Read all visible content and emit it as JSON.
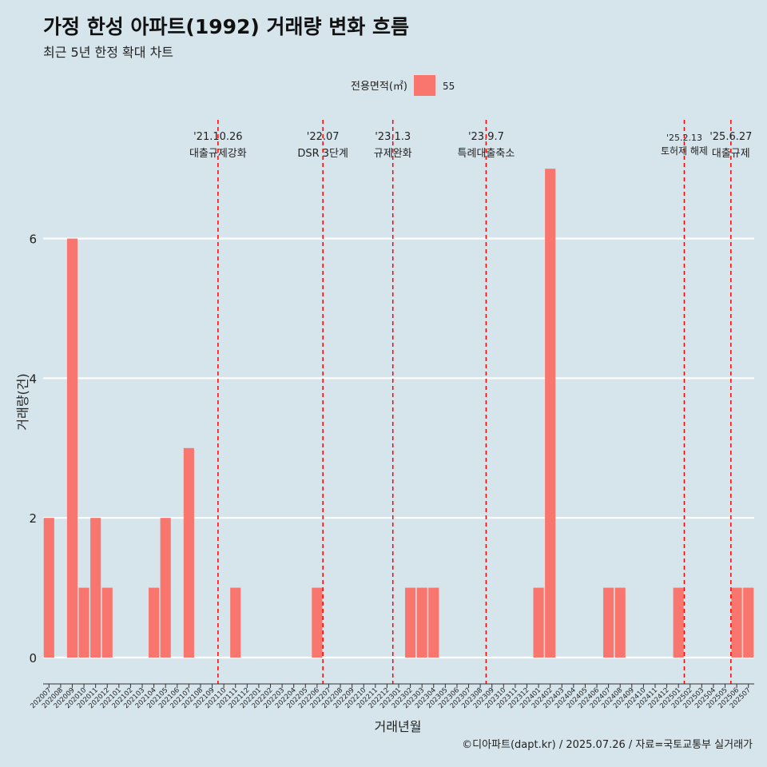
{
  "chart_data": {
    "type": "bar",
    "title": "가정 한성 아파트(1992) 거래량 변화 흐름",
    "subtitle": "최근 5년 한정 확대 차트",
    "xlabel": "거래년월",
    "ylabel": "거래량(건)",
    "legend_title": "전용면적(㎡)",
    "legend_position": "top",
    "caption": "©디아파트(dapt.kr) / 2025.07.26 / 자료=국토교통부 실거래가",
    "ylim": [
      0,
      7
    ],
    "yticks": [
      0,
      2,
      4,
      6
    ],
    "grid": true,
    "categories": [
      "202007",
      "202008",
      "202009",
      "202010",
      "202011",
      "202012",
      "202101",
      "202102",
      "202103",
      "202104",
      "202105",
      "202106",
      "202107",
      "202108",
      "202109",
      "202110",
      "202111",
      "202112",
      "202201",
      "202202",
      "202203",
      "202204",
      "202205",
      "202206",
      "202207",
      "202208",
      "202209",
      "202210",
      "202211",
      "202212",
      "202301",
      "202302",
      "202303",
      "202304",
      "202305",
      "202306",
      "202307",
      "202308",
      "202309",
      "202310",
      "202311",
      "202312",
      "202401",
      "202402",
      "202403",
      "202404",
      "202405",
      "202406",
      "202407",
      "202408",
      "202409",
      "202410",
      "202411",
      "202412",
      "202501",
      "202502",
      "202503",
      "202504",
      "202505",
      "202506",
      "202507"
    ],
    "series": [
      {
        "name": "55",
        "color": "#f8766d",
        "values": [
          2,
          0,
          6,
          1,
          2,
          1,
          0,
          0,
          0,
          1,
          2,
          0,
          3,
          0,
          0,
          0,
          1,
          0,
          0,
          0,
          0,
          0,
          0,
          1,
          0,
          0,
          0,
          0,
          0,
          0,
          0,
          1,
          1,
          1,
          0,
          0,
          0,
          0,
          0,
          0,
          0,
          0,
          1,
          7,
          0,
          0,
          0,
          0,
          1,
          1,
          0,
          0,
          0,
          0,
          1,
          0,
          0,
          0,
          0,
          1,
          1
        ]
      }
    ],
    "annotations": [
      {
        "category": "202110",
        "date": "'21.10.26",
        "label": "대출규제강화"
      },
      {
        "category": "202207",
        "date": "'22.07",
        "label": "DSR 3단계"
      },
      {
        "category": "202301",
        "date": "'23.1.3",
        "label": "규제완화"
      },
      {
        "category": "202309",
        "date": "'23.9.7",
        "label": "특례대출축소"
      },
      {
        "category": "202502",
        "date": "'25.2.13",
        "label": "토허제 해제"
      },
      {
        "category": "202506",
        "date": "'25.6.27",
        "label": "대출규제"
      }
    ],
    "annotation_color": "#ff0000"
  }
}
